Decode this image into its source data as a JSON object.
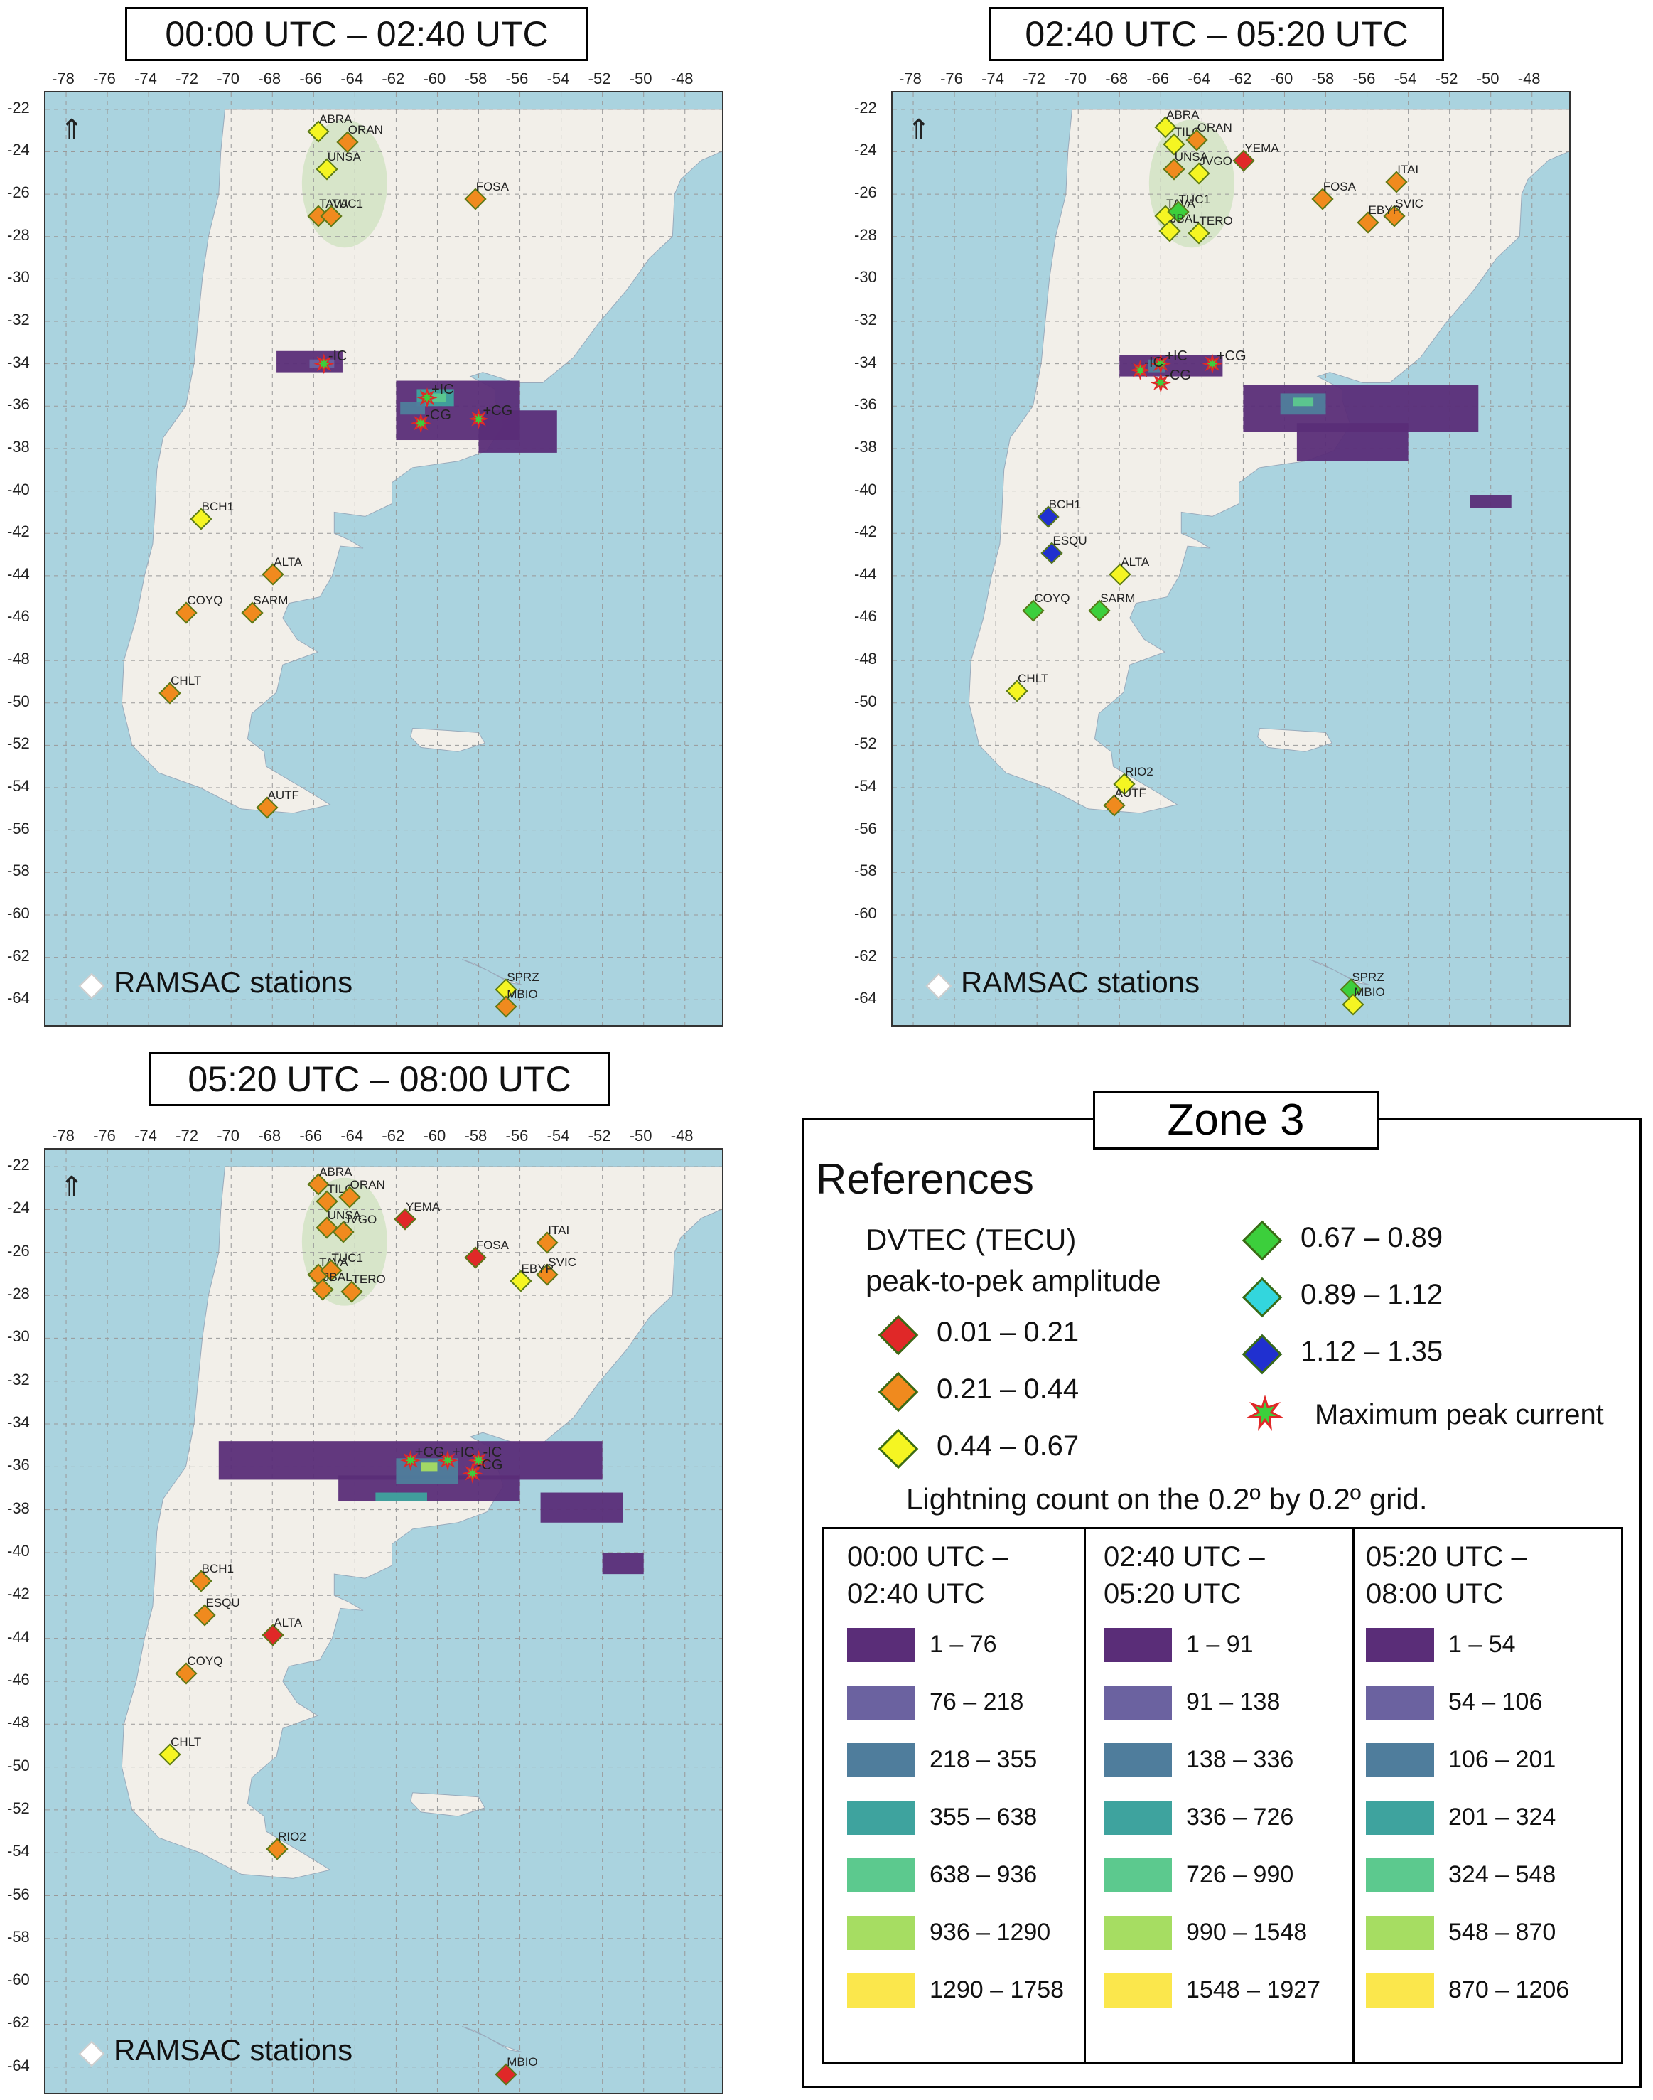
{
  "panels": [
    {
      "title": "00:00 UTC – 02:40 UTC",
      "legend_label": "RAMSAC stations",
      "stations": [
        {
          "code": "ABRA",
          "lon": -65.8,
          "lat": -23.0,
          "color": "#f5f522"
        },
        {
          "code": "ORAN",
          "lon": -64.4,
          "lat": -23.5,
          "color": "#f08a1e"
        },
        {
          "code": "UNSA",
          "lon": -65.4,
          "lat": -24.8,
          "color": "#f5f522"
        },
        {
          "code": "FOSA",
          "lon": -58.2,
          "lat": -26.2,
          "color": "#f08a1e"
        },
        {
          "code": "TAVA",
          "lon": -65.8,
          "lat": -27.0,
          "color": "#f08a1e"
        },
        {
          "code": "TUC1",
          "lon": -65.2,
          "lat": -27.0,
          "color": "#f08a1e"
        },
        {
          "code": "BCH1",
          "lon": -71.5,
          "lat": -41.3,
          "color": "#f5f522"
        },
        {
          "code": "ALTA",
          "lon": -68.0,
          "lat": -43.9,
          "color": "#f08a1e"
        },
        {
          "code": "COYQ",
          "lon": -72.2,
          "lat": -45.7,
          "color": "#f08a1e"
        },
        {
          "code": "SARM",
          "lon": -69.0,
          "lat": -45.7,
          "color": "#f08a1e"
        },
        {
          "code": "CHLT",
          "lon": -73.0,
          "lat": -49.5,
          "color": "#f08a1e"
        },
        {
          "code": "AUTF",
          "lon": -68.3,
          "lat": -54.9,
          "color": "#f08a1e"
        },
        {
          "code": "SPRZ",
          "lon": -56.7,
          "lat": -63.5,
          "color": "#f5f522"
        },
        {
          "code": "MBIO",
          "lon": -56.7,
          "lat": -64.3,
          "color": "#f08a1e"
        }
      ],
      "events": [
        {
          "label": "-IC",
          "lon": -65.5,
          "lat": -34.0
        },
        {
          "label": "+IC",
          "lon": -60.5,
          "lat": -35.6
        },
        {
          "label": "+CG",
          "lon": -58.0,
          "lat": -36.6
        },
        {
          "label": "-CG",
          "lon": -60.8,
          "lat": -36.8
        }
      ]
    },
    {
      "title": "02:40 UTC – 05:20 UTC",
      "legend_label": "RAMSAC stations",
      "stations": [
        {
          "code": "ABRA",
          "lon": -65.8,
          "lat": -22.8,
          "color": "#f5f522"
        },
        {
          "code": "TILC",
          "lon": -65.4,
          "lat": -23.6,
          "color": "#f5f522"
        },
        {
          "code": "ORAN",
          "lon": -64.3,
          "lat": -23.4,
          "color": "#f08a1e"
        },
        {
          "code": "YEMA",
          "lon": -62.0,
          "lat": -24.4,
          "color": "#e02828"
        },
        {
          "code": "UNSA",
          "lon": -65.4,
          "lat": -24.8,
          "color": "#f08a1e"
        },
        {
          "code": "JVGO",
          "lon": -64.2,
          "lat": -25.0,
          "color": "#f5f522"
        },
        {
          "code": "FOSA",
          "lon": -58.2,
          "lat": -26.2,
          "color": "#f08a1e"
        },
        {
          "code": "ITAI",
          "lon": -54.6,
          "lat": -25.4,
          "color": "#f08a1e"
        },
        {
          "code": "TAVA",
          "lon": -65.8,
          "lat": -27.0,
          "color": "#f5f522"
        },
        {
          "code": "TUC1",
          "lon": -65.2,
          "lat": -26.8,
          "color": "#3ccf3c"
        },
        {
          "code": "SVIC",
          "lon": -54.7,
          "lat": -27.0,
          "color": "#f08a1e"
        },
        {
          "code": "EBYP",
          "lon": -56.0,
          "lat": -27.3,
          "color": "#f08a1e"
        },
        {
          "code": "TERO",
          "lon": -64.2,
          "lat": -27.8,
          "color": "#f5f522"
        },
        {
          "code": "JBAL",
          "lon": -65.6,
          "lat": -27.7,
          "color": "#f5f522"
        },
        {
          "code": "BCH1",
          "lon": -71.5,
          "lat": -41.2,
          "color": "#2030d0"
        },
        {
          "code": "ESQU",
          "lon": -71.3,
          "lat": -42.9,
          "color": "#2030d0"
        },
        {
          "code": "ALTA",
          "lon": -68.0,
          "lat": -43.9,
          "color": "#f5f522"
        },
        {
          "code": "COYQ",
          "lon": -72.2,
          "lat": -45.6,
          "color": "#3ccf3c"
        },
        {
          "code": "SARM",
          "lon": -69.0,
          "lat": -45.6,
          "color": "#3ccf3c"
        },
        {
          "code": "CHLT",
          "lon": -73.0,
          "lat": -49.4,
          "color": "#f5f522"
        },
        {
          "code": "RIO2",
          "lon": -67.8,
          "lat": -53.8,
          "color": "#f5f522"
        },
        {
          "code": "AUTF",
          "lon": -68.3,
          "lat": -54.8,
          "color": "#f08a1e"
        },
        {
          "code": "SPRZ",
          "lon": -56.8,
          "lat": -63.5,
          "color": "#3ccf3c"
        },
        {
          "code": "MBIO",
          "lon": -56.7,
          "lat": -64.2,
          "color": "#f5f522"
        }
      ],
      "events": [
        {
          "label": "-IC",
          "lon": -67.0,
          "lat": -34.3
        },
        {
          "label": "+IC",
          "lon": -66.0,
          "lat": -34.0
        },
        {
          "label": "-CG",
          "lon": -66.0,
          "lat": -34.9
        },
        {
          "label": "+CG",
          "lon": -63.5,
          "lat": -34.0
        }
      ]
    },
    {
      "title": "05:20 UTC – 08:00 UTC",
      "legend_label": "RAMSAC stations",
      "stations": [
        {
          "code": "ABRA",
          "lon": -65.8,
          "lat": -22.8,
          "color": "#f08a1e"
        },
        {
          "code": "TILC",
          "lon": -65.4,
          "lat": -23.6,
          "color": "#f08a1e"
        },
        {
          "code": "ORAN",
          "lon": -64.3,
          "lat": -23.4,
          "color": "#f08a1e"
        },
        {
          "code": "YEMA",
          "lon": -61.6,
          "lat": -24.4,
          "color": "#e02828"
        },
        {
          "code": "UNSA",
          "lon": -65.4,
          "lat": -24.8,
          "color": "#f08a1e"
        },
        {
          "code": "JVGO",
          "lon": -64.6,
          "lat": -25.0,
          "color": "#f08a1e"
        },
        {
          "code": "FOSA",
          "lon": -58.2,
          "lat": -26.2,
          "color": "#e02828"
        },
        {
          "code": "ITAI",
          "lon": -54.7,
          "lat": -25.5,
          "color": "#f08a1e"
        },
        {
          "code": "TAVA",
          "lon": -65.8,
          "lat": -27.0,
          "color": "#f08a1e"
        },
        {
          "code": "TUC1",
          "lon": -65.2,
          "lat": -26.8,
          "color": "#f08a1e"
        },
        {
          "code": "SVIC",
          "lon": -54.7,
          "lat": -27.0,
          "color": "#f08a1e"
        },
        {
          "code": "EBYP",
          "lon": -56.0,
          "lat": -27.3,
          "color": "#f5f522"
        },
        {
          "code": "JBAL",
          "lon": -65.6,
          "lat": -27.7,
          "color": "#f08a1e"
        },
        {
          "code": "TERO",
          "lon": -64.2,
          "lat": -27.8,
          "color": "#f08a1e"
        },
        {
          "code": "BCH1",
          "lon": -71.5,
          "lat": -41.3,
          "color": "#f08a1e"
        },
        {
          "code": "ESQU",
          "lon": -71.3,
          "lat": -42.9,
          "color": "#f08a1e"
        },
        {
          "code": "ALTA",
          "lon": -68.0,
          "lat": -43.8,
          "color": "#e02828"
        },
        {
          "code": "COYQ",
          "lon": -72.2,
          "lat": -45.6,
          "color": "#f08a1e"
        },
        {
          "code": "CHLT",
          "lon": -73.0,
          "lat": -49.4,
          "color": "#f5f522"
        },
        {
          "code": "RIO2",
          "lon": -67.8,
          "lat": -53.8,
          "color": "#f08a1e"
        },
        {
          "code": "MBIO",
          "lon": -56.7,
          "lat": -64.3,
          "color": "#e02828"
        }
      ],
      "events": [
        {
          "label": "+CG",
          "lon": -61.3,
          "lat": -35.7
        },
        {
          "label": "+IC",
          "lon": -59.5,
          "lat": -35.7
        },
        {
          "label": "-IC",
          "lon": -58.0,
          "lat": -35.7
        },
        {
          "label": "-CG",
          "lon": -58.3,
          "lat": -36.3
        }
      ]
    }
  ],
  "axes": {
    "lon_ticks": [
      -78,
      -76,
      -74,
      -72,
      -70,
      -68,
      -66,
      -64,
      -62,
      -60,
      -58,
      -56,
      -54,
      -52,
      -50,
      -48
    ],
    "lat_ticks": [
      -22,
      -24,
      -26,
      -28,
      -30,
      -32,
      -34,
      -36,
      -38,
      -40,
      -42,
      -44,
      -46,
      -48,
      -50,
      -52,
      -54,
      -56,
      -58,
      -60,
      -62,
      -64
    ],
    "north_glyph": "⇑"
  },
  "legend": {
    "zone_title": "Zone 3",
    "references_title": "References",
    "dvtec_line1": "DVTEC (TECU)",
    "dvtec_line2": "peak-to-pek amplitude",
    "dvtec_classes": [
      {
        "range": "0.01 – 0.21",
        "color": "#e02828"
      },
      {
        "range": "0.21 – 0.44",
        "color": "#f08a1e"
      },
      {
        "range": "0.44 – 0.67",
        "color": "#f5f522"
      },
      {
        "range": "0.67 – 0.89",
        "color": "#3ccf3c"
      },
      {
        "range": "0.89 – 1.12",
        "color": "#33d6dd"
      },
      {
        "range": "1.12 – 1.35",
        "color": "#2030d0"
      }
    ],
    "max_peak_label": "Maximum peak current",
    "lightning_title": "Lightning count on the 0.2º by 0.2º grid.",
    "count_colors": [
      "#5a2d78",
      "#6b62a0",
      "#4f7d9c",
      "#3ea39e",
      "#5cc98e",
      "#a6dd62",
      "#fbe74c"
    ],
    "columns": [
      {
        "head1": "00:00 UTC –",
        "head2": "02:40 UTC",
        "ranges": [
          "1 – 76",
          "76 – 218",
          "218 – 355",
          "355 – 638",
          "638 – 936",
          "936 – 1290",
          "1290 – 1758"
        ]
      },
      {
        "head1": "02:40 UTC –",
        "head2": "05:20 UTC",
        "ranges": [
          "1 – 91",
          "91 – 138",
          "138 – 336",
          "336 – 726",
          "726 – 990",
          "990 – 1548",
          "1548 – 1927"
        ]
      },
      {
        "head1": "05:20 UTC –",
        "head2": "08:00 UTC",
        "ranges": [
          "1 – 54",
          "54 – 106",
          "106 – 201",
          "201 – 324",
          "324 – 548",
          "548 – 870",
          "870 – 1206"
        ]
      }
    ]
  }
}
